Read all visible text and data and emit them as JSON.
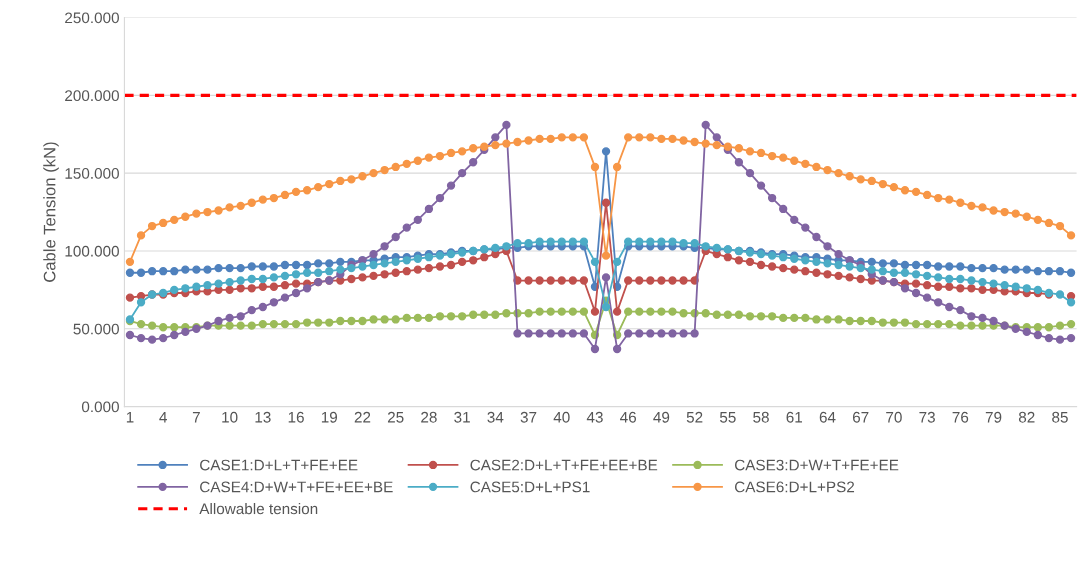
{
  "chart_data": {
    "type": "line",
    "ylabel": "Cable Tension (kN)",
    "categories": [
      "1",
      null,
      null,
      "4",
      null,
      null,
      "7",
      null,
      null,
      "10",
      null,
      null,
      "13",
      null,
      null,
      "16",
      null,
      null,
      "19",
      null,
      null,
      "22",
      null,
      null,
      "25",
      null,
      null,
      "28",
      null,
      null,
      "31",
      null,
      null,
      "34",
      null,
      null,
      "37",
      null,
      null,
      "40",
      null,
      null,
      "43",
      null,
      null,
      "46",
      null,
      null,
      "49",
      null,
      null,
      "52",
      null,
      null,
      "55",
      null,
      null,
      "58",
      null,
      null,
      "61",
      null,
      null,
      "64",
      null,
      null,
      "67",
      null,
      null,
      "70",
      null,
      null,
      "73",
      null,
      null,
      "76",
      null,
      null,
      "79",
      null,
      null,
      "82",
      null,
      null,
      "85",
      null
    ],
    "series": [
      {
        "name": "CASE1:D+L+T+FE+EE",
        "color": "#4f81bd",
        "values": [
          86,
          86,
          87,
          87,
          87,
          88,
          88,
          88,
          89,
          89,
          89,
          90,
          90,
          90,
          91,
          91,
          91,
          92,
          92,
          93,
          93,
          94,
          94,
          95,
          96,
          96,
          97,
          98,
          98,
          99,
          100,
          100,
          101,
          101,
          102,
          102,
          103,
          103,
          103,
          103,
          103,
          103,
          77,
          164,
          77,
          103,
          103,
          103,
          103,
          103,
          103,
          102,
          102,
          101,
          101,
          100,
          100,
          99,
          98,
          98,
          97,
          96,
          96,
          95,
          94,
          94,
          93,
          93,
          92,
          92,
          91,
          91,
          91,
          90,
          90,
          90,
          89,
          89,
          89,
          88,
          88,
          88,
          87,
          87,
          87,
          86
        ]
      },
      {
        "name": "CASE2:D+L+T+FE+EE+BE",
        "color": "#c0504d",
        "values": [
          70,
          71,
          72,
          72,
          73,
          73,
          74,
          74,
          75,
          75,
          76,
          76,
          77,
          77,
          78,
          79,
          79,
          80,
          81,
          81,
          82,
          83,
          84,
          85,
          86,
          87,
          88,
          89,
          90,
          91,
          93,
          94,
          96,
          98,
          100,
          81,
          81,
          81,
          81,
          81,
          81,
          81,
          61,
          131,
          61,
          81,
          81,
          81,
          81,
          81,
          81,
          81,
          100,
          98,
          96,
          94,
          93,
          91,
          90,
          89,
          88,
          87,
          86,
          85,
          84,
          83,
          82,
          81,
          81,
          80,
          79,
          79,
          78,
          77,
          77,
          76,
          76,
          75,
          75,
          74,
          74,
          73,
          73,
          72,
          null,
          71
        ]
      },
      {
        "name": "CASE3:D+W+T+FE+EE",
        "color": "#9bbb59",
        "values": [
          55,
          53,
          52,
          51,
          51,
          51,
          51,
          52,
          52,
          52,
          52,
          52,
          53,
          53,
          53,
          53,
          54,
          54,
          54,
          55,
          55,
          55,
          56,
          56,
          56,
          57,
          57,
          57,
          58,
          58,
          58,
          59,
          59,
          59,
          60,
          60,
          60,
          61,
          61,
          61,
          61,
          61,
          46,
          68,
          46,
          61,
          61,
          61,
          61,
          61,
          60,
          60,
          60,
          59,
          59,
          59,
          58,
          58,
          58,
          57,
          57,
          57,
          56,
          56,
          56,
          55,
          55,
          55,
          54,
          54,
          54,
          53,
          53,
          53,
          53,
          52,
          52,
          52,
          52,
          52,
          51,
          51,
          51,
          51,
          52,
          53
        ]
      },
      {
        "name": "CASE4:D+W+T+FE+EE+BE",
        "color": "#8064a2",
        "values": [
          46,
          44,
          43,
          44,
          46,
          48,
          50,
          52,
          55,
          57,
          58,
          62,
          64,
          67,
          70,
          73,
          76,
          80,
          81,
          85,
          91,
          94,
          98,
          103,
          109,
          115,
          120,
          127,
          134,
          142,
          150,
          157,
          165,
          173,
          181,
          47,
          47,
          47,
          47,
          47,
          47,
          47,
          37,
          83,
          37,
          47,
          47,
          47,
          47,
          47,
          47,
          47,
          181,
          173,
          165,
          157,
          150,
          142,
          134,
          127,
          120,
          115,
          109,
          103,
          98,
          94,
          91,
          85,
          81,
          80,
          76,
          73,
          70,
          67,
          64,
          62,
          58,
          57,
          55,
          52,
          50,
          48,
          46,
          44,
          43,
          44
        ]
      },
      {
        "name": "CASE5:D+L+PS1",
        "color": "#4bacc6",
        "values": [
          56,
          67,
          72,
          73,
          75,
          76,
          77,
          78,
          79,
          80,
          81,
          82,
          82,
          83,
          84,
          85,
          86,
          86,
          87,
          88,
          89,
          90,
          91,
          92,
          93,
          94,
          95,
          96,
          97,
          98,
          99,
          100,
          101,
          102,
          103,
          105,
          105,
          106,
          106,
          106,
          106,
          106,
          93,
          64,
          93,
          106,
          106,
          106,
          106,
          106,
          105,
          105,
          103,
          102,
          101,
          100,
          99,
          98,
          97,
          96,
          95,
          94,
          93,
          92,
          91,
          90,
          89,
          88,
          87,
          86,
          86,
          85,
          84,
          83,
          82,
          82,
          81,
          80,
          79,
          78,
          77,
          76,
          75,
          73,
          72,
          67
        ]
      },
      {
        "name": "CASE6:D+L+PS2",
        "color": "#f79646",
        "values": [
          93,
          110,
          116,
          118,
          120,
          122,
          124,
          125,
          126,
          128,
          129,
          131,
          133,
          134,
          136,
          138,
          139,
          141,
          143,
          145,
          146,
          148,
          150,
          152,
          154,
          156,
          158,
          160,
          161,
          163,
          164,
          166,
          167,
          168,
          169,
          170,
          171,
          172,
          172,
          173,
          173,
          173,
          154,
          97,
          154,
          173,
          173,
          173,
          172,
          172,
          171,
          170,
          169,
          168,
          167,
          166,
          164,
          163,
          161,
          160,
          158,
          156,
          154,
          152,
          150,
          148,
          146,
          145,
          143,
          141,
          139,
          138,
          136,
          134,
          133,
          131,
          129,
          128,
          126,
          125,
          124,
          122,
          120,
          118,
          116,
          110
        ]
      }
    ],
    "ref_lines": [
      {
        "axis": "y",
        "value": 200,
        "label": "Allowable tension",
        "color": "#ff0000",
        "line_style": "dashed"
      }
    ],
    "ylim": [
      0,
      250
    ],
    "yticks": [
      {
        "value": 0,
        "label": "0.000"
      },
      {
        "value": 50,
        "label": "50.000"
      },
      {
        "value": 100,
        "label": "100.000"
      },
      {
        "value": 150,
        "label": "150.000"
      },
      {
        "value": 200,
        "label": "200.000"
      },
      {
        "value": 250,
        "label": "250.000"
      }
    ],
    "grid": "y",
    "legend": "bottom",
    "marker": "circle",
    "line_style": "solid"
  }
}
